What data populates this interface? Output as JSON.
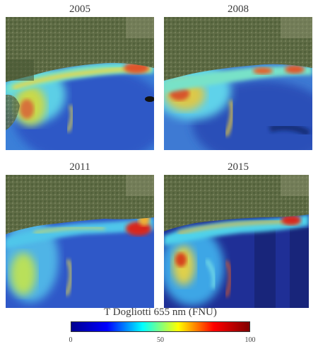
{
  "panels": [
    {
      "year": "2005"
    },
    {
      "year": "2008"
    },
    {
      "year": "2011"
    },
    {
      "year": "2015"
    }
  ],
  "colorbar": {
    "title": "T Dogliotti 655 nm (FNU)",
    "ticks": [
      "0",
      "50",
      "100"
    ],
    "range": [
      0,
      100
    ],
    "colors": [
      "#00008f",
      "#0000ff",
      "#00ffff",
      "#ffff00",
      "#ff0000",
      "#800000"
    ]
  },
  "palette": {
    "land": "#5d6b44",
    "land_dark": "#3e4a2c",
    "water_deep": "#1d2fa0",
    "water_mid": "#3a8be0",
    "turbid_cyan": "#4fd0e8",
    "turbid_yellow": "#d9e04a",
    "turbid_red": "#d33a1f"
  }
}
